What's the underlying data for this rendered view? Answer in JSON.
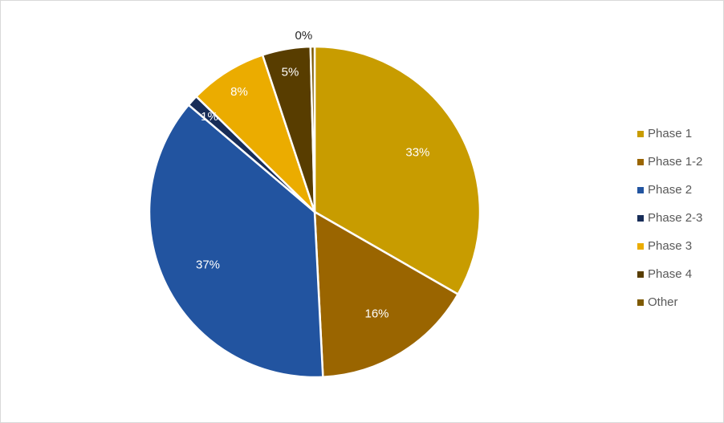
{
  "chart_data": {
    "type": "pie",
    "title": "",
    "categories": [
      "Phase 1",
      "Phase 1-2",
      "Phase 2",
      "Phase 2-3",
      "Phase 3",
      "Phase 4",
      "Other"
    ],
    "values": [
      33.3,
      15.9,
      37.0,
      1.1,
      7.6,
      4.7,
      0.4
    ],
    "data_labels": [
      "33%",
      "16%",
      "37%",
      "1%",
      "8%",
      "5%",
      "0%"
    ],
    "colors": [
      "#C89C00",
      "#9A6500",
      "#2254A0",
      "#182D58",
      "#EBAC00",
      "#583D00",
      "#7E5A00"
    ],
    "legend": {
      "position": "right"
    },
    "start_angle_deg": 0,
    "direction": "clockwise"
  }
}
